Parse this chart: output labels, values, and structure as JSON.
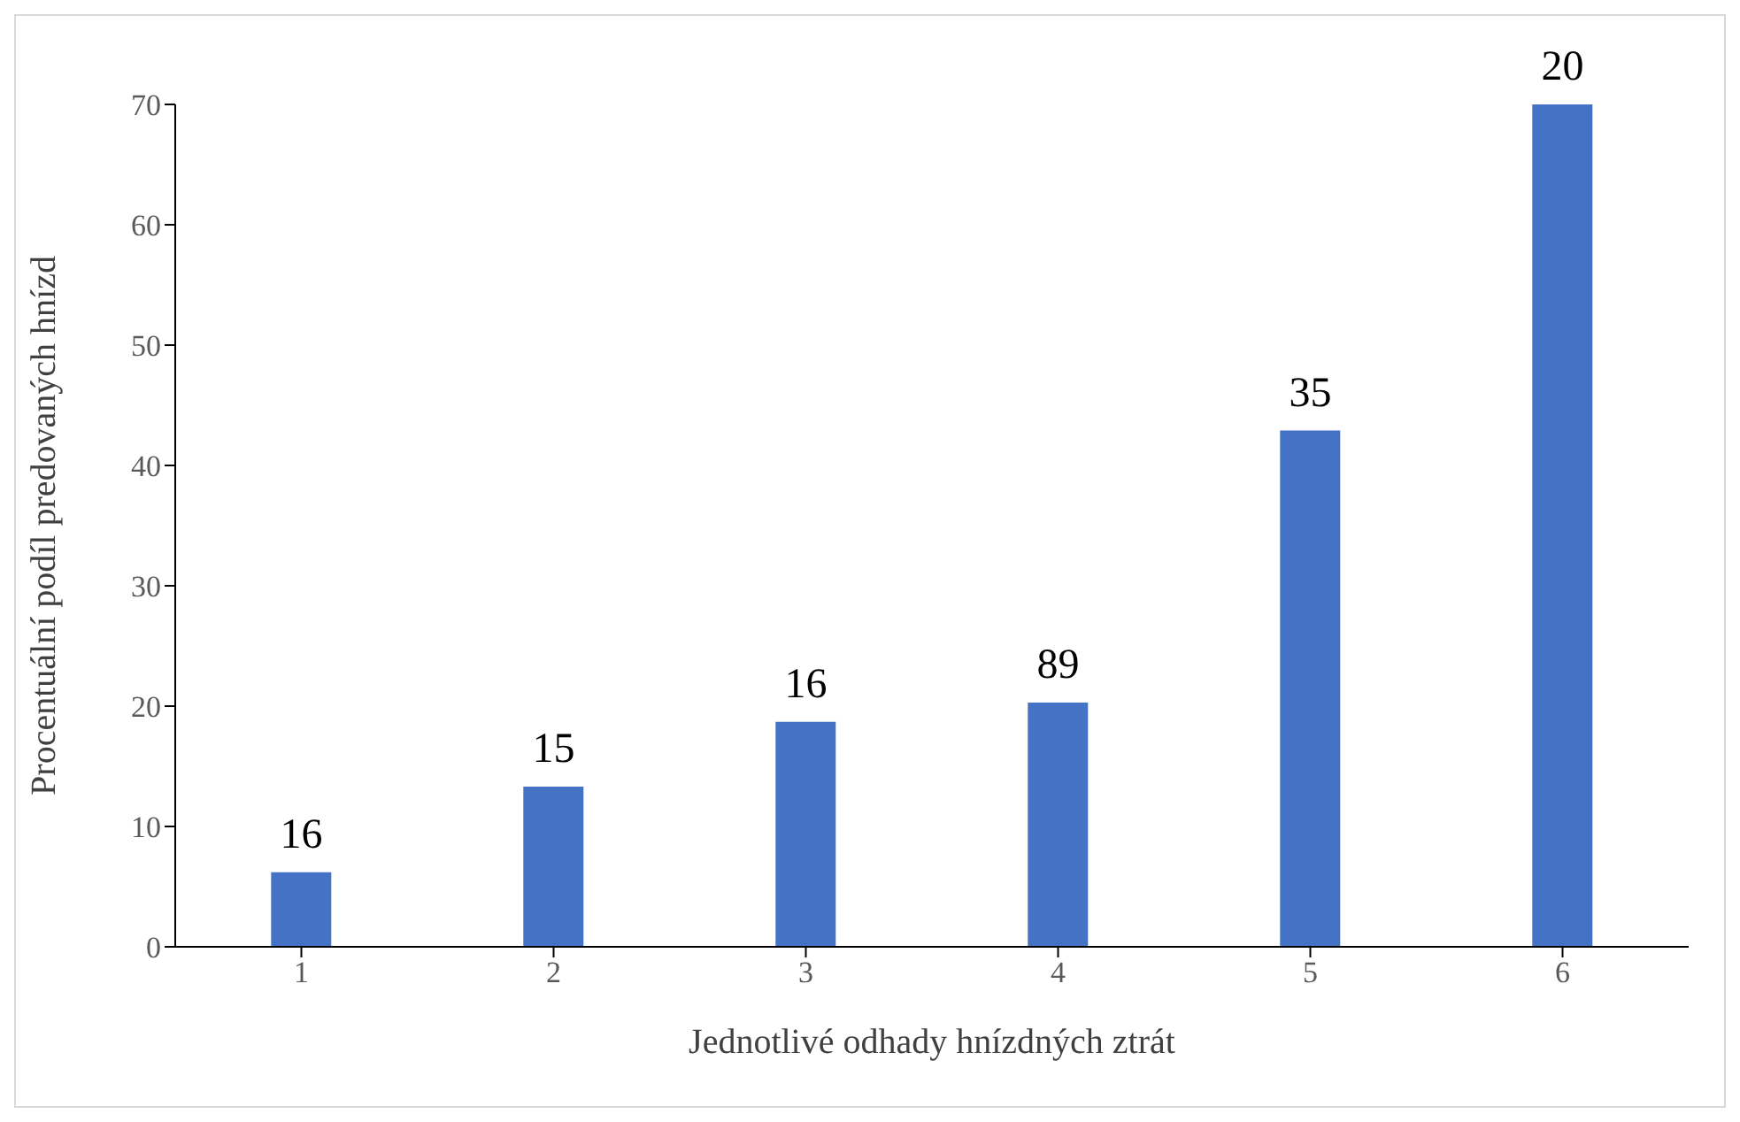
{
  "chart_data": {
    "type": "bar",
    "xlabel": "Jednotlivé odhady hnízdných ztrát",
    "ylabel": "Procentuální podíl predovaných hnízd",
    "categories": [
      "1",
      "2",
      "3",
      "4",
      "5",
      "6"
    ],
    "values": [
      6.2,
      13.3,
      18.7,
      20.3,
      42.9,
      70
    ],
    "annotations": [
      {
        "text": "16",
        "x": "1",
        "y": 6.2
      },
      {
        "text": "15",
        "x": "2",
        "y": 13.3
      },
      {
        "text": "16",
        "x": "3",
        "y": 18.7
      },
      {
        "text": "89",
        "x": "4",
        "y": 20.3
      },
      {
        "text": "35",
        "x": "5",
        "y": 42.9
      },
      {
        "text": "20",
        "x": "6",
        "y": 70
      }
    ],
    "color": "#4472c4",
    "ylim": [
      0,
      70
    ],
    "yticks": [
      0,
      10,
      20,
      30,
      40,
      50,
      60,
      70
    ],
    "grid": false,
    "legend": false
  }
}
